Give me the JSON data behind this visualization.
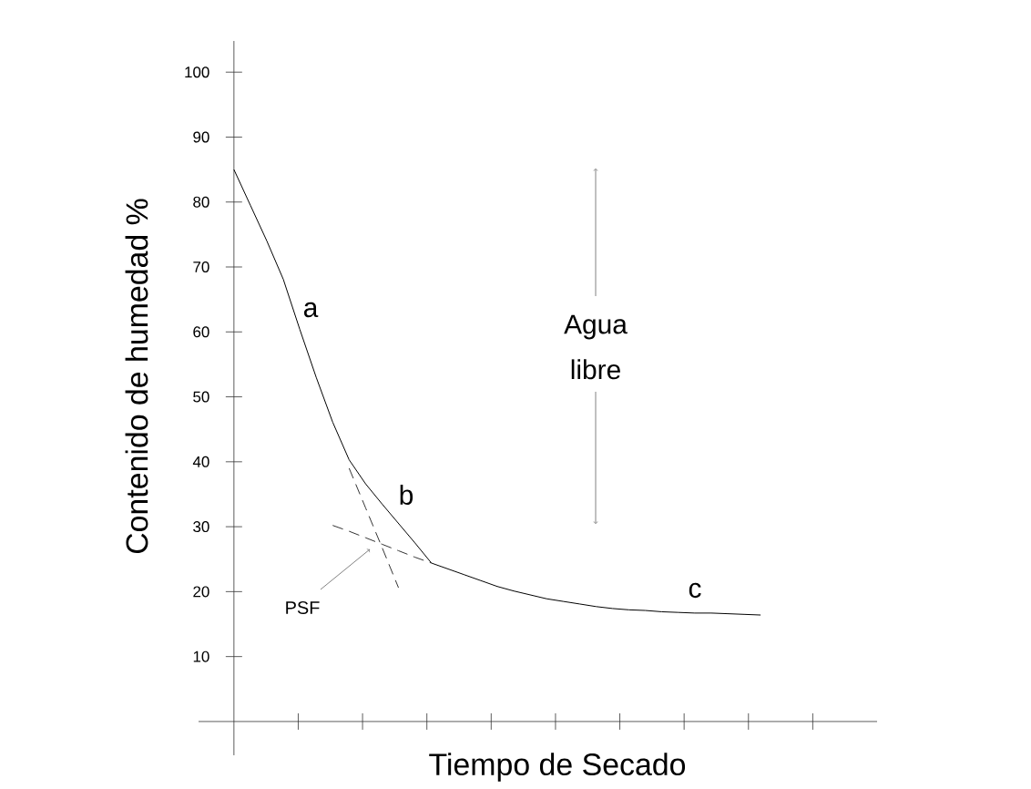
{
  "chart_data": {
    "type": "line",
    "xlabel": "Tiempo de Secado",
    "ylabel": "Contenido de humedad %",
    "line_style": "solid",
    "categories": [
      null,
      null,
      null,
      null,
      null,
      null,
      null,
      null,
      null,
      null,
      null,
      null,
      null,
      null,
      null,
      null,
      null,
      null,
      null,
      null,
      null,
      null,
      null,
      null,
      null,
      null,
      null,
      null,
      null,
      null,
      null,
      null,
      null
    ],
    "ylim": [
      -5.2,
      104.8
    ],
    "yticks": [
      10,
      20,
      30,
      40,
      50,
      60,
      70,
      80,
      90,
      100
    ],
    "tick_labels": "y",
    "series": [
      {
        "color": "#000000",
        "values": [
          85,
          79.5,
          74.0,
          68.1,
          60.4,
          53.0,
          46.1,
          40.3,
          36.6,
          33.5,
          30.5,
          27.5,
          24.4,
          23.5,
          22.6,
          21.7,
          20.8,
          20.1,
          19.5,
          18.9,
          18.5,
          18.1,
          17.7,
          17.4,
          17.2,
          17.1,
          16.9,
          16.8,
          16.7,
          16.7,
          16.6,
          16.5,
          16.4
        ]
      },
      {
        "type": "line",
        "line_style": "dashed",
        "color": "#333333",
        "values": [
          null,
          null,
          null,
          null,
          null,
          null,
          null,
          39.0,
          32.9,
          26.8,
          20.6,
          null,
          null,
          null,
          null,
          null,
          null,
          null,
          null,
          null,
          null,
          null,
          null,
          null,
          null,
          null,
          null,
          null,
          null,
          null,
          null,
          null,
          null
        ]
      },
      {
        "type": "line",
        "line_style": "dashed",
        "color": "#333333",
        "values": [
          null,
          null,
          null,
          null,
          null,
          null,
          30.2,
          29.3,
          28.3,
          27.3,
          26.3,
          25.3,
          24.4,
          null,
          null,
          null,
          null,
          null,
          null,
          null,
          null,
          null,
          null,
          null,
          null,
          null,
          null,
          null,
          null,
          null,
          null,
          null,
          null
        ]
      }
    ],
    "annotations": [
      "a",
      "b",
      "c",
      "Agua libre",
      "PSF"
    ]
  }
}
